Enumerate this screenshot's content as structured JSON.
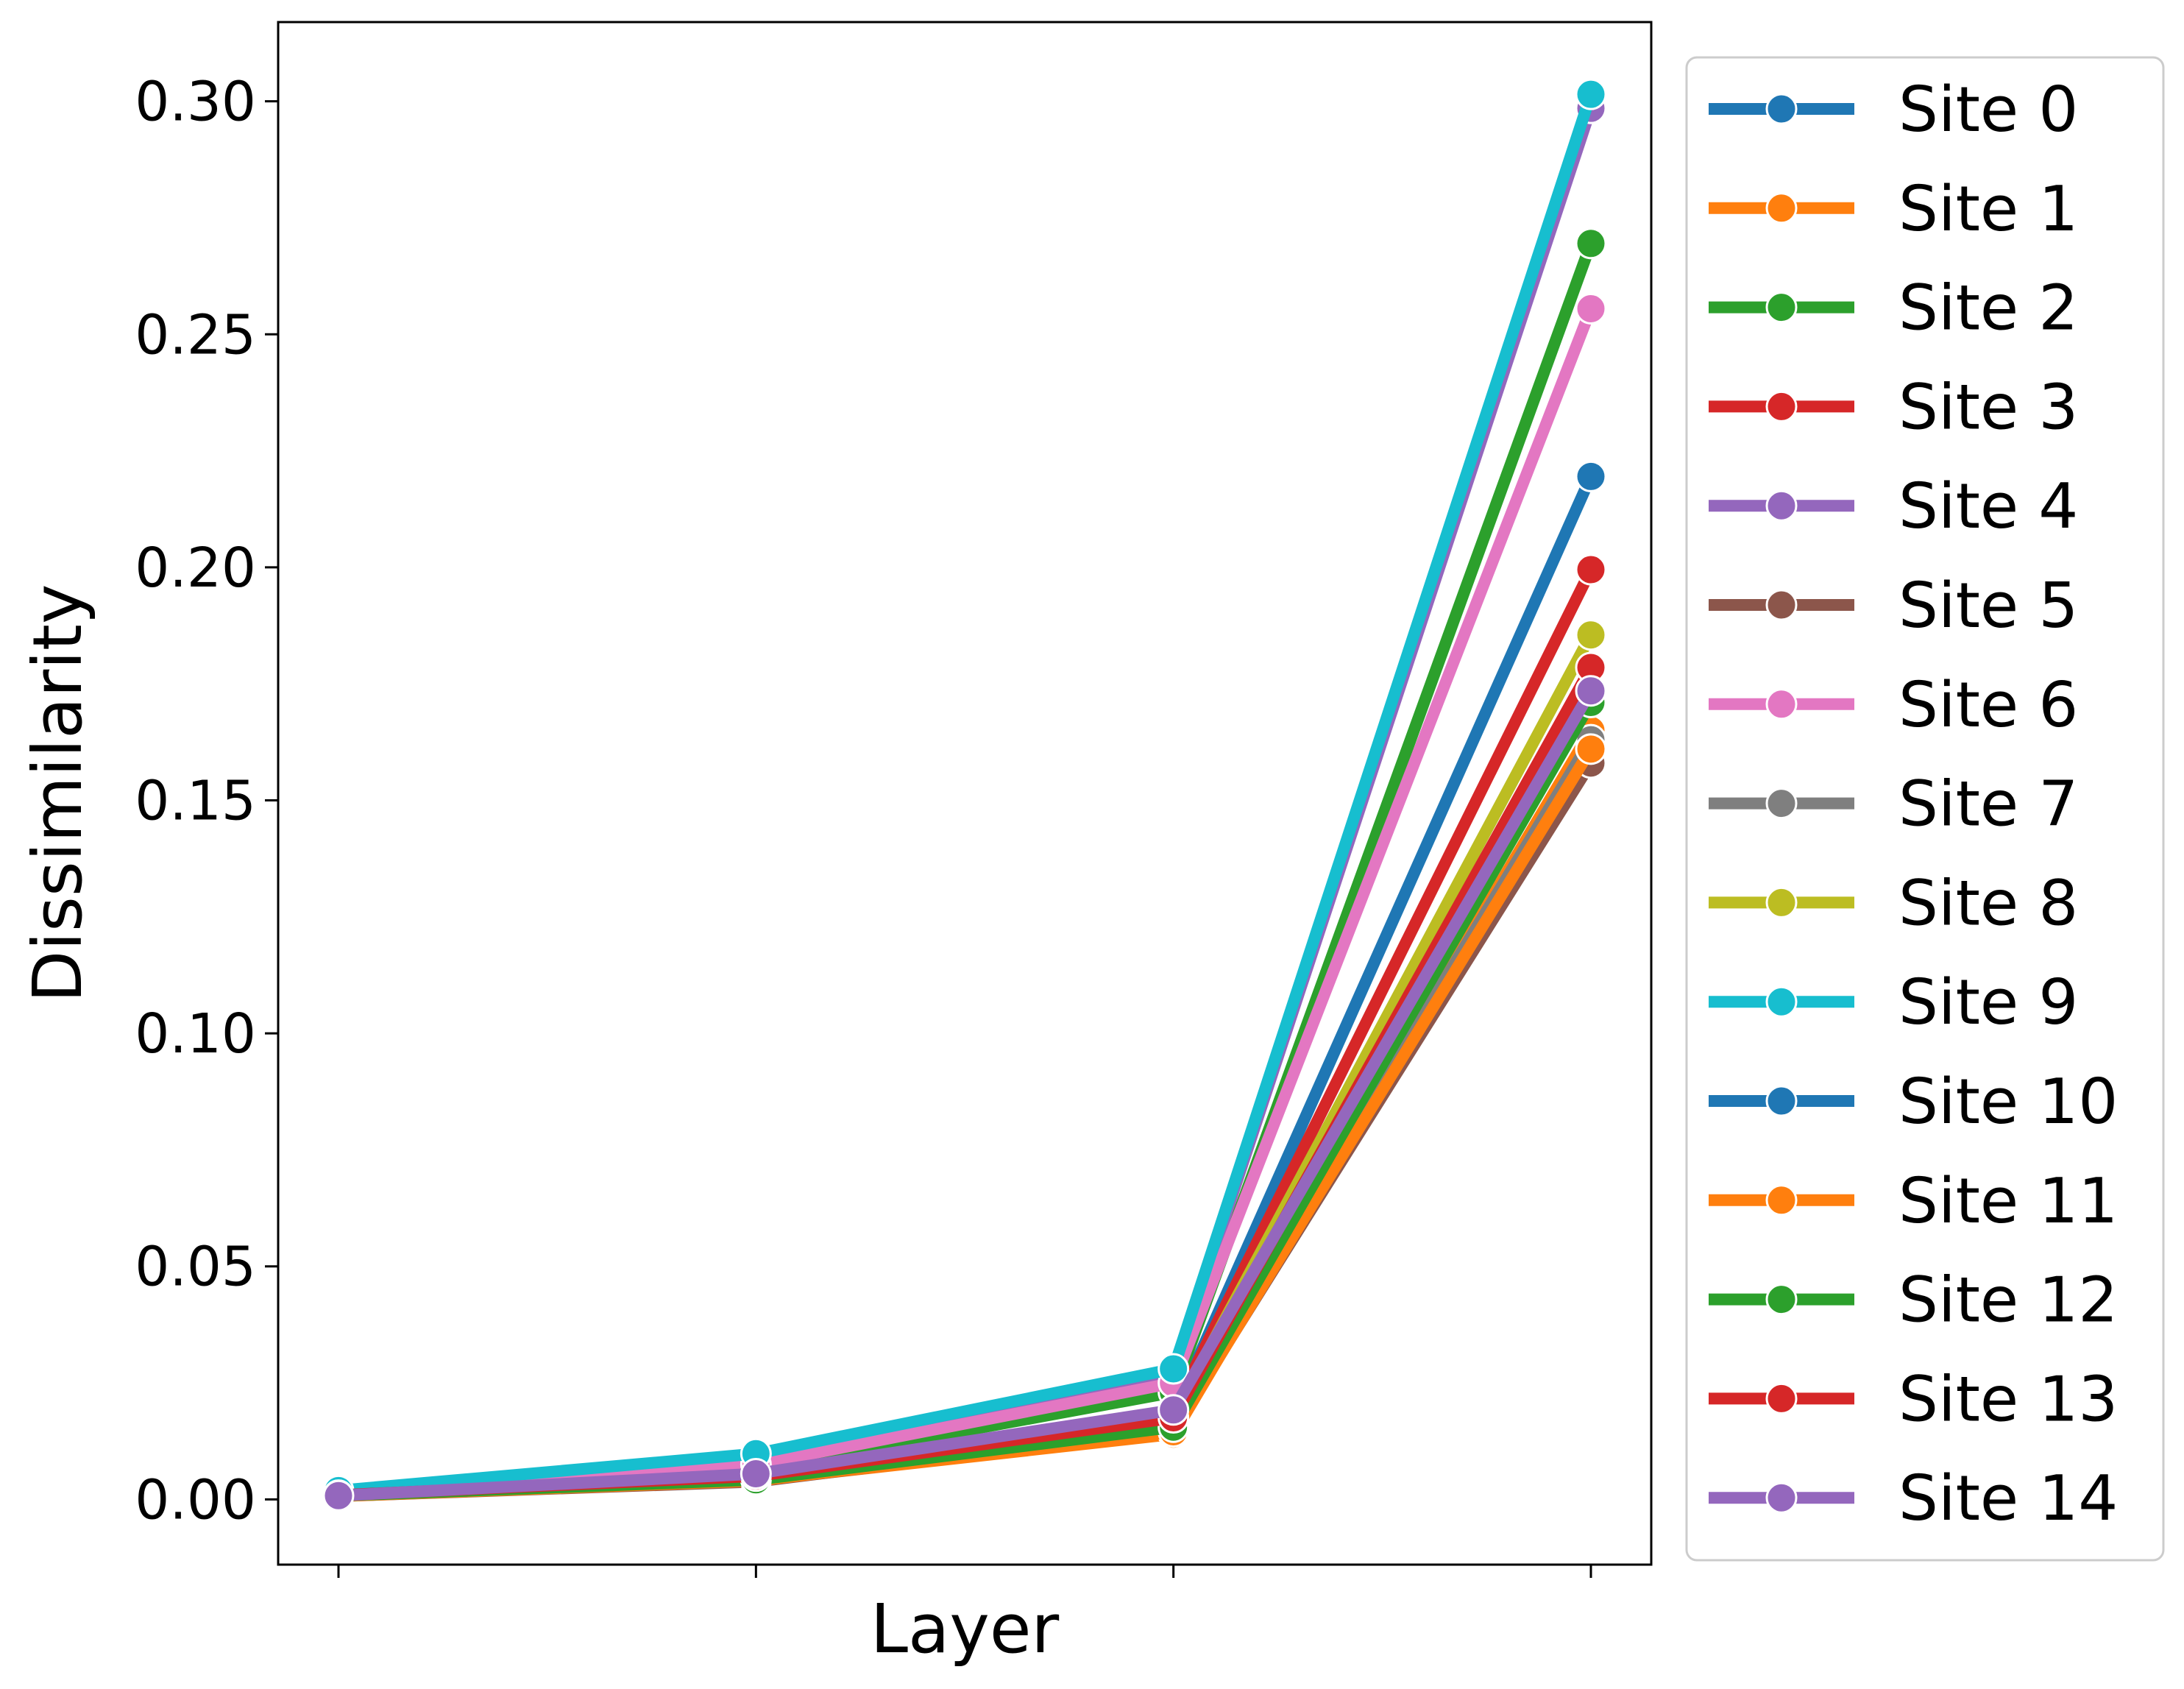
{
  "chart_data": {
    "type": "line",
    "title": "",
    "xlabel": "Layer",
    "ylabel": "Dissimilarity",
    "x": [
      0,
      1,
      2,
      3
    ],
    "x_tick_labels": [
      "",
      "",
      "",
      ""
    ],
    "ylim": [
      -0.014,
      0.317
    ],
    "y_ticks": [
      "0.00",
      "0.05",
      "0.10",
      "0.15",
      "0.20",
      "0.25",
      "0.30"
    ],
    "grid": false,
    "legend_position": "outside right",
    "series": [
      {
        "name": "Site 0",
        "color": "#1f77b4",
        "values": [
          0.0012,
          0.0048,
          0.0185,
          0.2195
        ]
      },
      {
        "name": "Site 1",
        "color": "#ff7f0e",
        "values": [
          0.0008,
          0.004,
          0.014,
          0.165
        ]
      },
      {
        "name": "Site 2",
        "color": "#2ca02c",
        "values": [
          0.0015,
          0.0065,
          0.023,
          0.2695
        ]
      },
      {
        "name": "Site 3",
        "color": "#d62728",
        "values": [
          0.001,
          0.0052,
          0.019,
          0.1995
        ]
      },
      {
        "name": "Site 4",
        "color": "#9467bd",
        "values": [
          0.0018,
          0.0085,
          0.027,
          0.2985
        ]
      },
      {
        "name": "Site 5",
        "color": "#8c564b",
        "values": [
          0.0007,
          0.0038,
          0.015,
          0.158
        ]
      },
      {
        "name": "Site 6",
        "color": "#e377c2",
        "values": [
          0.0014,
          0.0075,
          0.025,
          0.2555
        ]
      },
      {
        "name": "Site 7",
        "color": "#7f7f7f",
        "values": [
          0.0008,
          0.0042,
          0.016,
          0.163
        ]
      },
      {
        "name": "Site 8",
        "color": "#bcbd22",
        "values": [
          0.001,
          0.005,
          0.018,
          0.1855
        ]
      },
      {
        "name": "Site 9",
        "color": "#17becf",
        "values": [
          0.0019,
          0.0098,
          0.028,
          0.3015
        ]
      },
      {
        "name": "Site 10",
        "color": "#1f77b4",
        "values": [
          0.0008,
          0.0045,
          0.017,
          0.172
        ]
      },
      {
        "name": "Site 11",
        "color": "#ff7f0e",
        "values": [
          0.0007,
          0.004,
          0.0145,
          0.161
        ]
      },
      {
        "name": "Site 12",
        "color": "#2ca02c",
        "values": [
          0.0008,
          0.0042,
          0.0155,
          0.171
        ]
      },
      {
        "name": "Site 13",
        "color": "#d62728",
        "values": [
          0.0009,
          0.005,
          0.0175,
          0.1785
        ]
      },
      {
        "name": "Site 14",
        "color": "#9467bd",
        "values": [
          0.0008,
          0.0055,
          0.0192,
          0.1735
        ]
      }
    ]
  }
}
